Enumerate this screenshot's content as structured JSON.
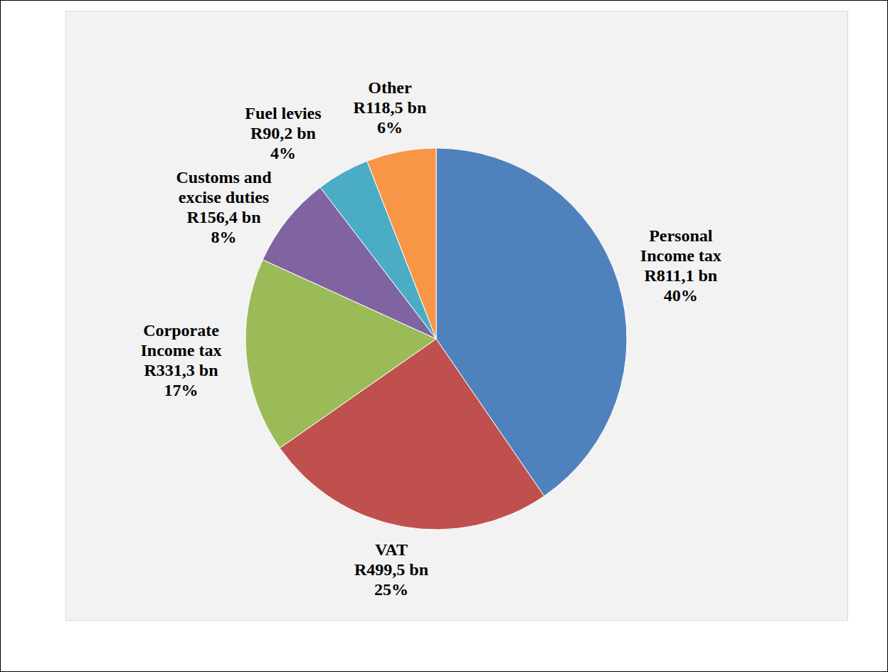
{
  "chart_data": {
    "type": "pie",
    "categories": [
      "Personal Income tax",
      "VAT",
      "Corporate Income tax",
      "Customs and excise duties",
      "Fuel levies",
      "Other"
    ],
    "values": [
      811.1,
      499.5,
      331.3,
      156.4,
      90.2,
      118.5
    ],
    "value_labels": [
      "R811,1 bn",
      "R499,5 bn",
      "R331,3 bn",
      "R156,4 bn",
      "R90,2 bn",
      "R118,5 bn"
    ],
    "percent_labels": [
      "40%",
      "25%",
      "17%",
      "8%",
      "4%",
      "6%"
    ],
    "colors": [
      "#4f81bd",
      "#c0504d",
      "#9bbb59",
      "#8064a2",
      "#4bacc6",
      "#f79646"
    ],
    "data_labels": true
  }
}
